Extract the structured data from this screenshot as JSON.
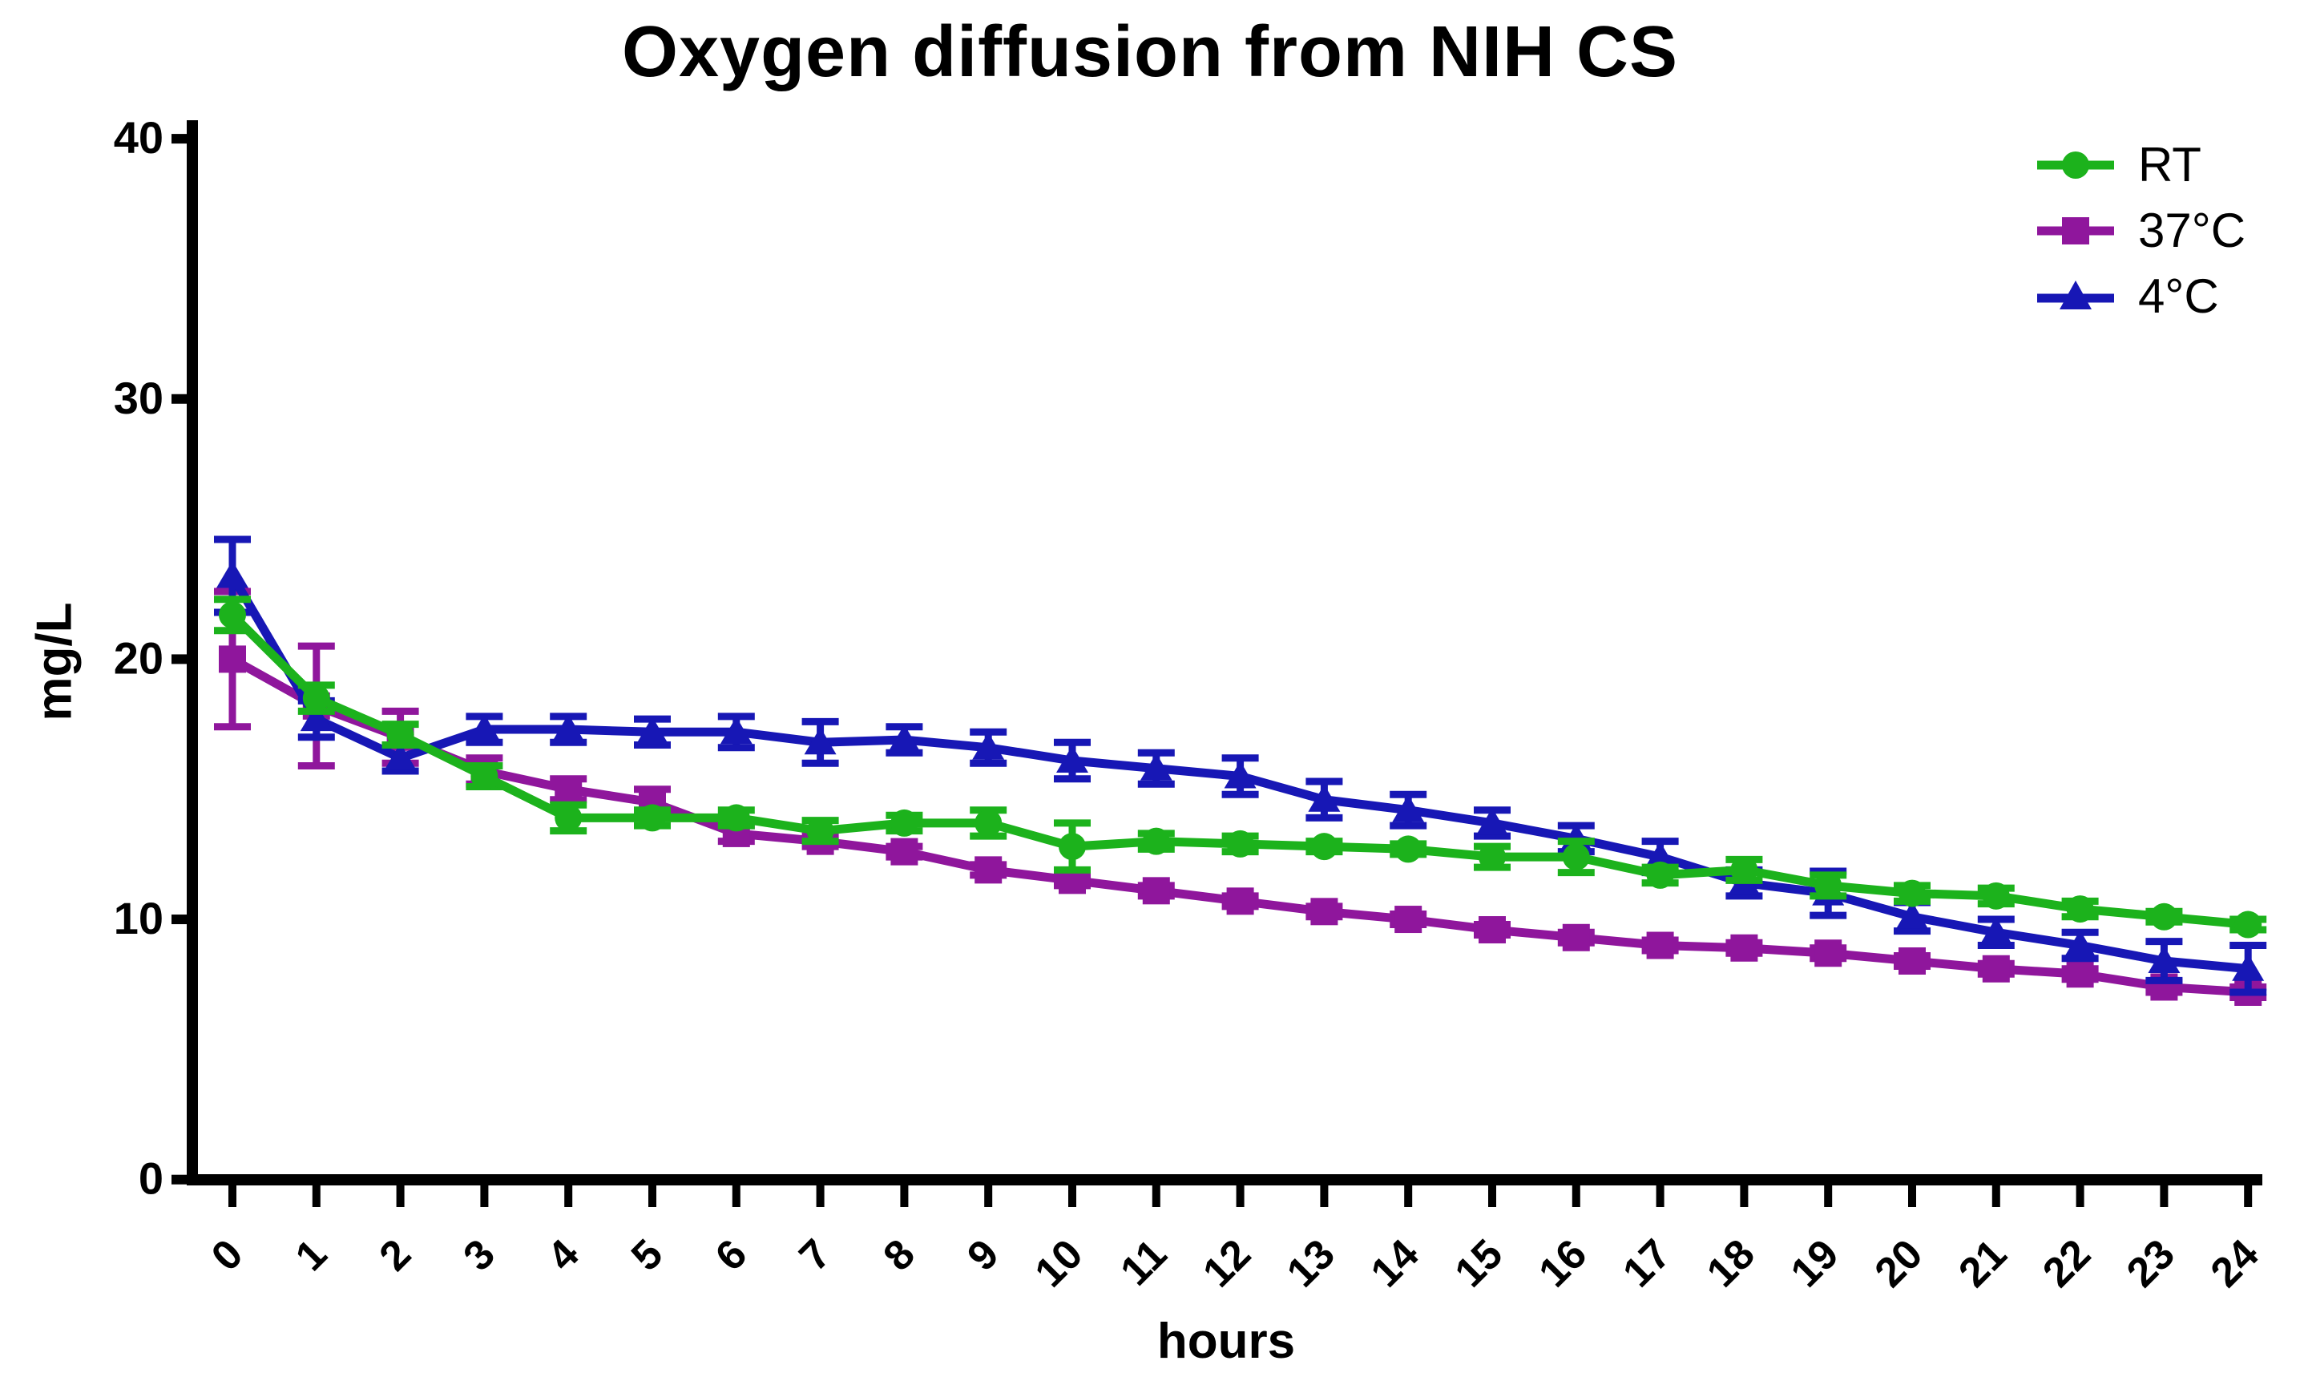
{
  "title": "Oxygen diffusion from NIH CS",
  "chart_data": {
    "type": "line",
    "title": "Oxygen diffusion from NIH CS",
    "xlabel": "hours",
    "ylabel": "mg/L",
    "x": [
      0,
      1,
      2,
      3,
      4,
      5,
      6,
      7,
      8,
      9,
      10,
      11,
      12,
      13,
      14,
      15,
      16,
      17,
      18,
      19,
      20,
      21,
      22,
      23,
      24
    ],
    "xlim": [
      0,
      24
    ],
    "ylim": [
      0,
      40
    ],
    "yticks": [
      0,
      10,
      20,
      30,
      40
    ],
    "grid": false,
    "legend_position": "top-right",
    "error_bars": true,
    "series": [
      {
        "name": "RT",
        "color": "#1CB21C",
        "marker": "circle",
        "values": [
          21.7,
          18.5,
          17.1,
          15.5,
          13.9,
          13.9,
          13.9,
          13.4,
          13.7,
          13.7,
          12.8,
          13.0,
          12.9,
          12.8,
          12.7,
          12.4,
          12.4,
          11.7,
          11.9,
          11.3,
          11.0,
          10.9,
          10.4,
          10.1,
          9.8
        ],
        "errors": [
          0.6,
          0.5,
          0.4,
          0.4,
          0.5,
          0.3,
          0.3,
          0.4,
          0.3,
          0.5,
          0.9,
          0.3,
          0.3,
          0.2,
          0.2,
          0.4,
          0.6,
          0.3,
          0.4,
          0.4,
          0.3,
          0.3,
          0.3,
          0.2,
          0.2
        ]
      },
      {
        "name": "37°C",
        "color": "#8F169C",
        "marker": "square",
        "values": [
          20.0,
          18.2,
          17.0,
          15.7,
          15.0,
          14.5,
          13.3,
          13.0,
          12.6,
          11.9,
          11.5,
          11.1,
          10.7,
          10.3,
          10.0,
          9.6,
          9.3,
          9.0,
          8.9,
          8.7,
          8.4,
          8.1,
          7.9,
          7.4,
          7.2
        ],
        "errors": [
          2.6,
          2.3,
          1.0,
          0.5,
          0.4,
          0.5,
          0.3,
          0.2,
          0.2,
          0.2,
          0.2,
          0.2,
          0.2,
          0.2,
          0.2,
          0.2,
          0.2,
          0.2,
          0.2,
          0.2,
          0.2,
          0.2,
          0.2,
          0.2,
          0.2
        ]
      },
      {
        "name": "4°C",
        "color": "#1717B5",
        "marker": "triangle",
        "values": [
          23.2,
          17.7,
          16.2,
          17.3,
          17.3,
          17.2,
          17.2,
          16.8,
          16.9,
          16.6,
          16.1,
          15.8,
          15.5,
          14.6,
          14.2,
          13.7,
          13.1,
          12.4,
          11.4,
          11.0,
          10.1,
          9.5,
          9.0,
          8.4,
          8.1
        ],
        "errors": [
          1.4,
          0.7,
          0.5,
          0.5,
          0.5,
          0.5,
          0.6,
          0.8,
          0.5,
          0.6,
          0.7,
          0.6,
          0.7,
          0.7,
          0.6,
          0.5,
          0.5,
          0.6,
          0.5,
          0.85,
          0.55,
          0.5,
          0.5,
          0.75,
          0.9
        ]
      }
    ]
  }
}
